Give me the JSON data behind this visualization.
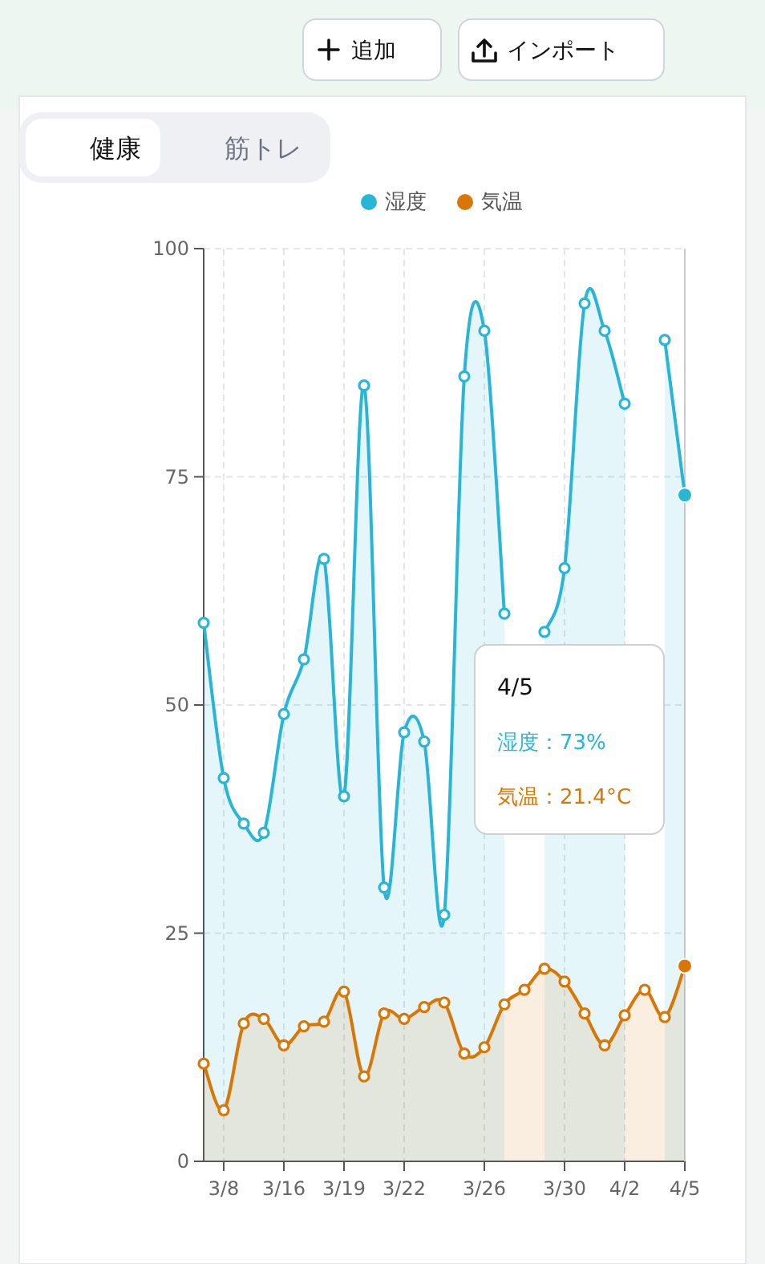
{
  "chart_data": {
    "type": "area",
    "categories": [
      null,
      "3/8",
      null,
      null,
      "3/16",
      null,
      null,
      "3/19",
      null,
      null,
      "3/22",
      null,
      null,
      null,
      "3/26",
      null,
      null,
      null,
      "3/30",
      null,
      null,
      "4/2",
      null,
      null,
      "4/5"
    ],
    "series": [
      {
        "name": "湿度",
        "color": "#29b6d6",
        "values": [
          59,
          42,
          37,
          36,
          49,
          55,
          66,
          40,
          85,
          30,
          47,
          46,
          27,
          86,
          91,
          60,
          null,
          58,
          65,
          94,
          91,
          83,
          null,
          90,
          73
        ]
      },
      {
        "name": "気温",
        "color": "#d97706",
        "values": [
          10.7,
          5.6,
          15.1,
          15.6,
          12.7,
          14.8,
          15.3,
          18.6,
          9.3,
          16.2,
          15.6,
          16.9,
          17.4,
          11.8,
          12.5,
          17.2,
          18.8,
          21.1,
          19.7,
          16.2,
          12.7,
          16.0,
          18.8,
          15.8,
          21.4
        ]
      }
    ],
    "ylim": [
      0,
      100
    ],
    "yticks": [
      0,
      25,
      50,
      75,
      100
    ],
    "grid": true,
    "legend": "top",
    "marker": "circle",
    "line_style": "solid",
    "annotations": [
      "追加",
      "インポート",
      "健康",
      "筋トレ",
      "4/5",
      "湿度：73%",
      "気温：21.4°C"
    ]
  }
}
